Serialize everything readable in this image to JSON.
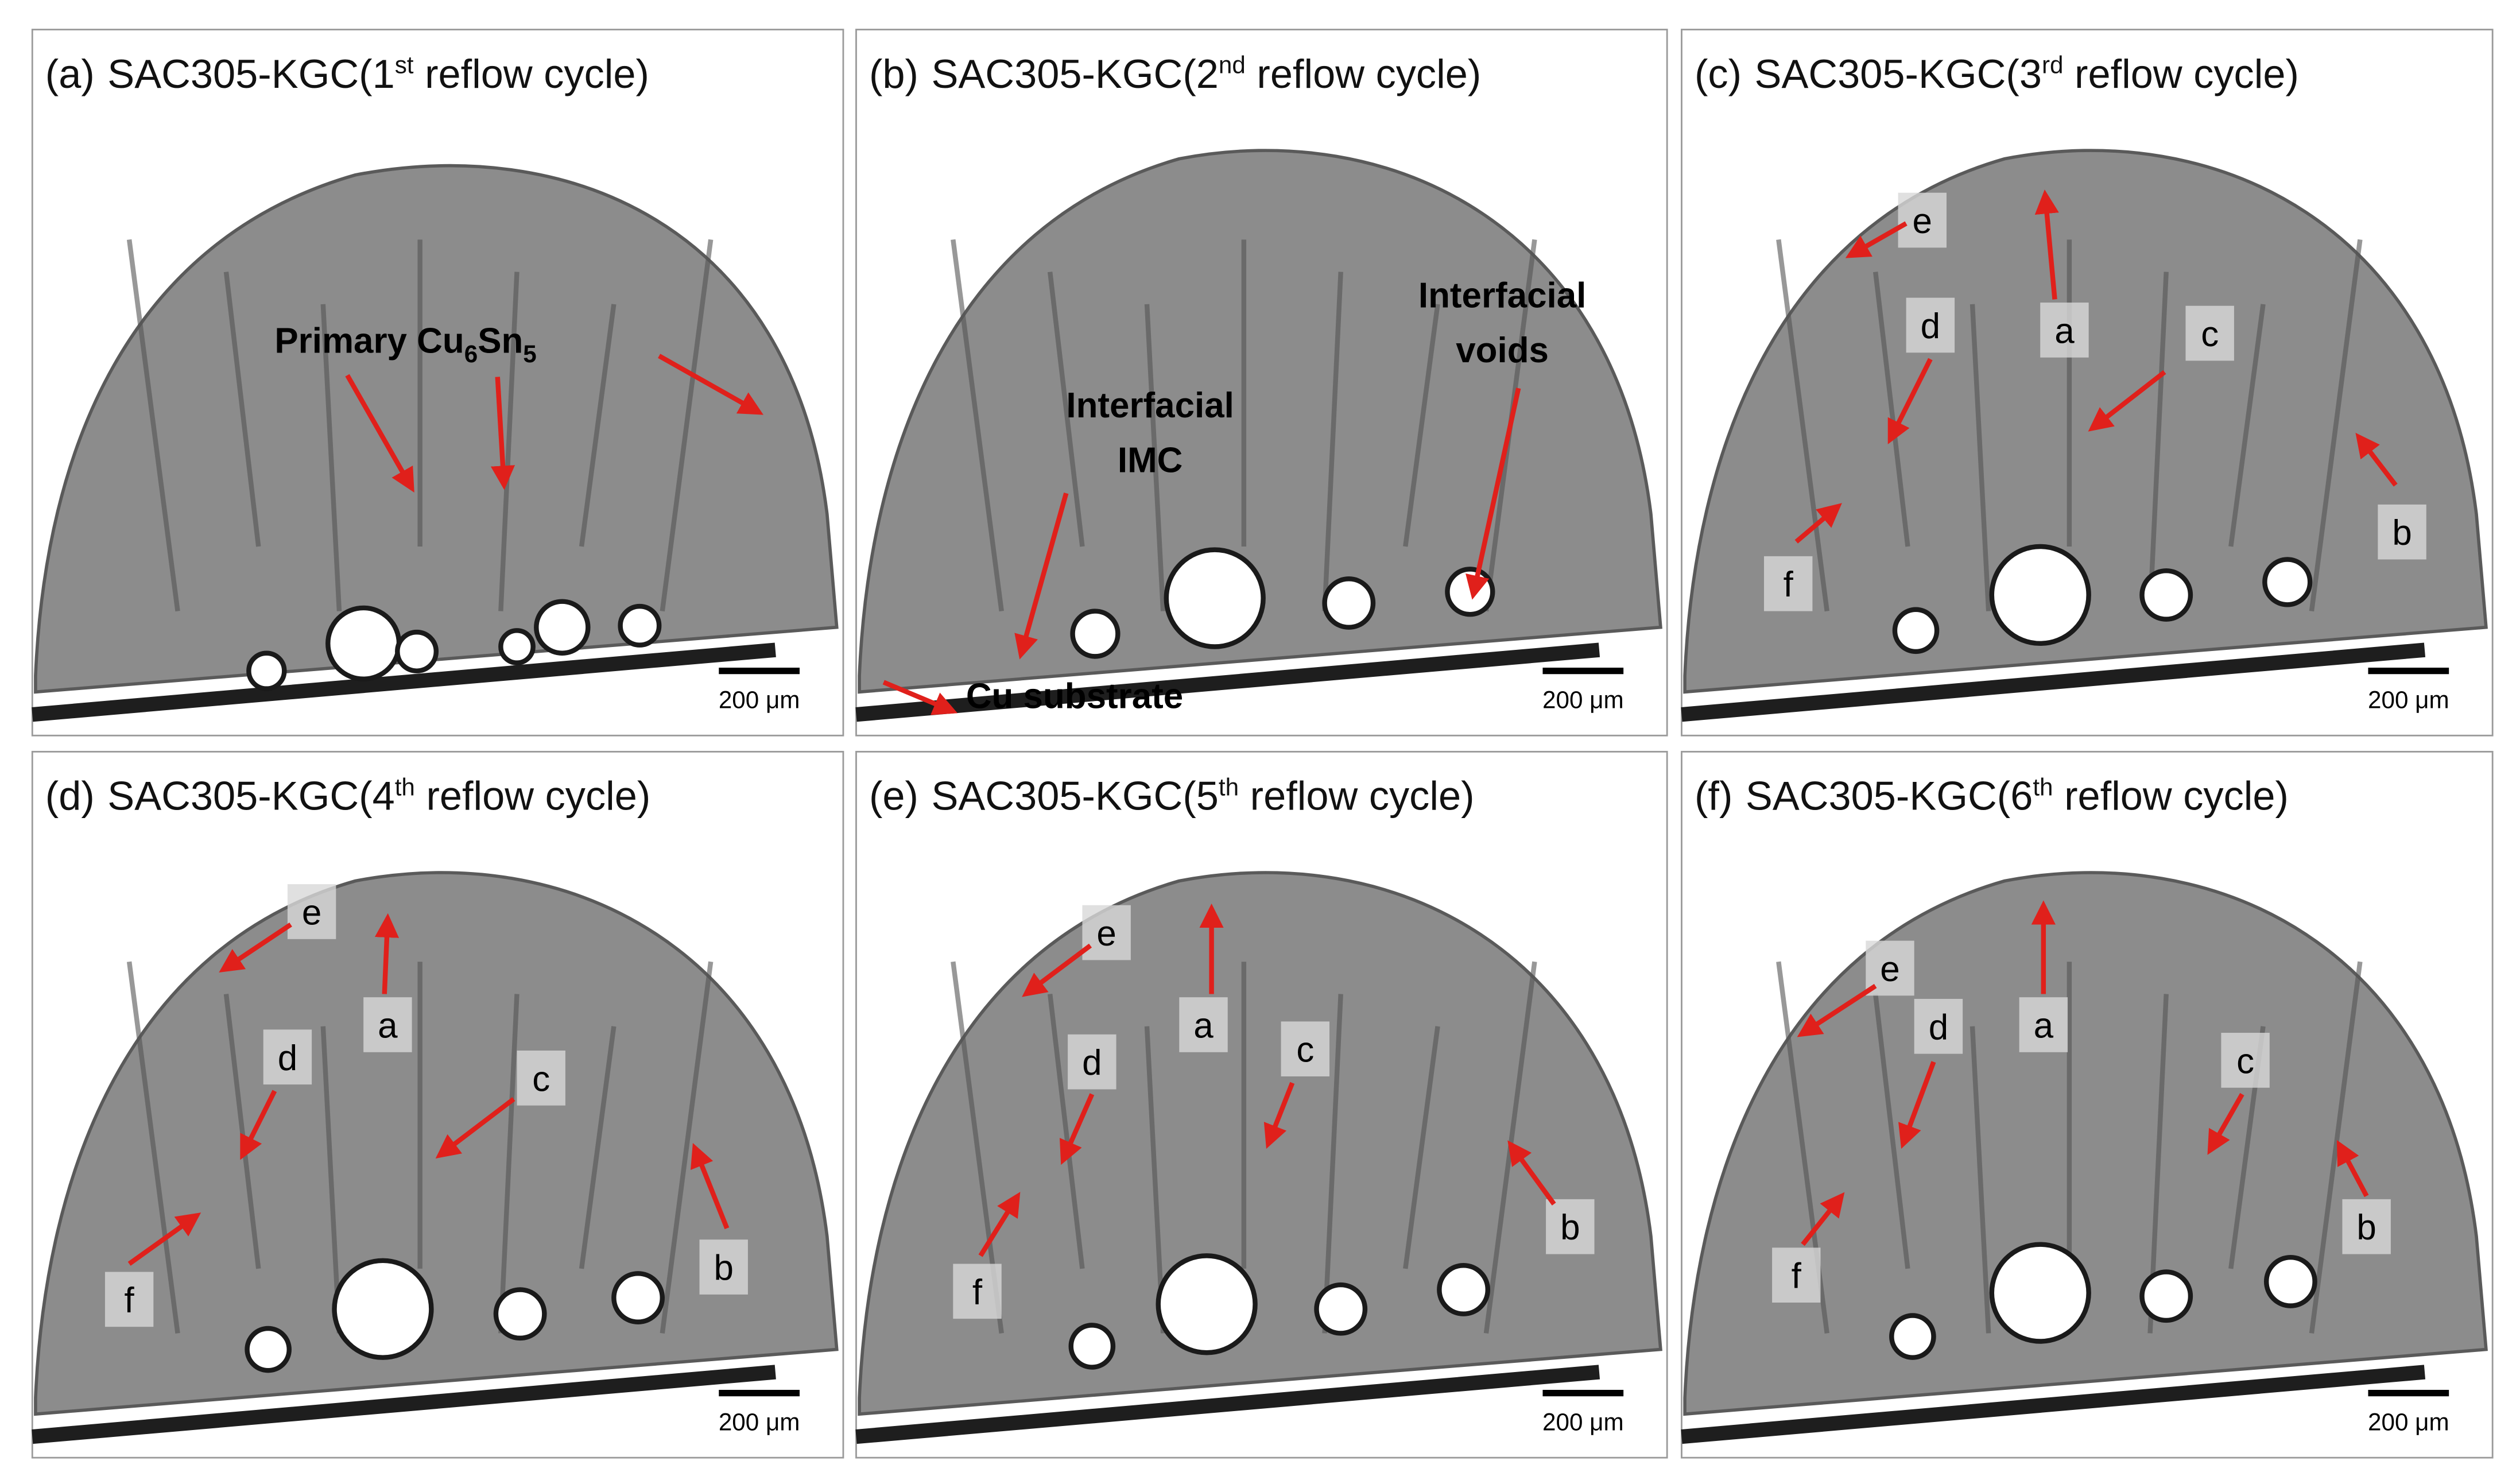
{
  "panels": [
    {
      "label": "(a)",
      "title": {
        "text": "SAC305-KGC(1",
        "sup": "st",
        "tail": " reflow cycle)"
      },
      "annotations": [
        {
          "parts": [
            "Primary Cu",
            "6",
            "Sn",
            "5"
          ]
        }
      ],
      "scale_bar": "200 μm"
    },
    {
      "label": "(b)",
      "title": {
        "text": "SAC305-KGC(2",
        "sup": "nd",
        "tail": " reflow cycle)"
      },
      "annotations": [
        {
          "lines": [
            "Interfacial",
            "IMC"
          ]
        },
        {
          "lines": [
            "Interfacial",
            "voids"
          ]
        },
        {
          "lines": [
            "Cu substrate"
          ]
        }
      ],
      "scale_bar": "200 μm"
    },
    {
      "label": "(c)",
      "title": {
        "text": "SAC305-KGC(3",
        "sup": "rd",
        "tail": " reflow cycle)"
      },
      "annotations": [
        {
          "lines": [
            "e"
          ]
        },
        {
          "lines": [
            "a"
          ]
        },
        {
          "lines": [
            "d"
          ]
        },
        {
          "lines": [
            "c"
          ]
        },
        {
          "lines": [
            "b"
          ]
        },
        {
          "lines": [
            "f"
          ]
        }
      ],
      "scale_bar": "200 μm"
    },
    {
      "label": "(d)",
      "title": {
        "text": "SAC305-KGC(4",
        "sup": "th",
        "tail": " reflow cycle)"
      },
      "annotations": [
        {
          "lines": [
            "e"
          ]
        },
        {
          "lines": [
            "a"
          ]
        },
        {
          "lines": [
            "d"
          ]
        },
        {
          "lines": [
            "c"
          ]
        },
        {
          "lines": [
            "b"
          ]
        },
        {
          "lines": [
            "f"
          ]
        }
      ],
      "scale_bar": "200 μm"
    },
    {
      "label": "(e)",
      "title": {
        "text": "SAC305-KGC(5",
        "sup": "th",
        "tail": " reflow cycle)"
      },
      "annotations": [
        {
          "lines": [
            "e"
          ]
        },
        {
          "lines": [
            "a"
          ]
        },
        {
          "lines": [
            "d"
          ]
        },
        {
          "lines": [
            "c"
          ]
        },
        {
          "lines": [
            "b"
          ]
        },
        {
          "lines": [
            "f"
          ]
        }
      ],
      "scale_bar": "200 μm"
    },
    {
      "label": "(f)",
      "title": {
        "text": "SAC305-KGC(6",
        "sup": "th",
        "tail": " reflow cycle)"
      },
      "annotations": [
        {
          "lines": [
            "e"
          ]
        },
        {
          "lines": [
            "a"
          ]
        },
        {
          "lines": [
            "d"
          ]
        },
        {
          "lines": [
            "c"
          ]
        },
        {
          "lines": [
            "b"
          ]
        },
        {
          "lines": [
            "f"
          ]
        }
      ],
      "scale_bar": "200 μm"
    }
  ]
}
